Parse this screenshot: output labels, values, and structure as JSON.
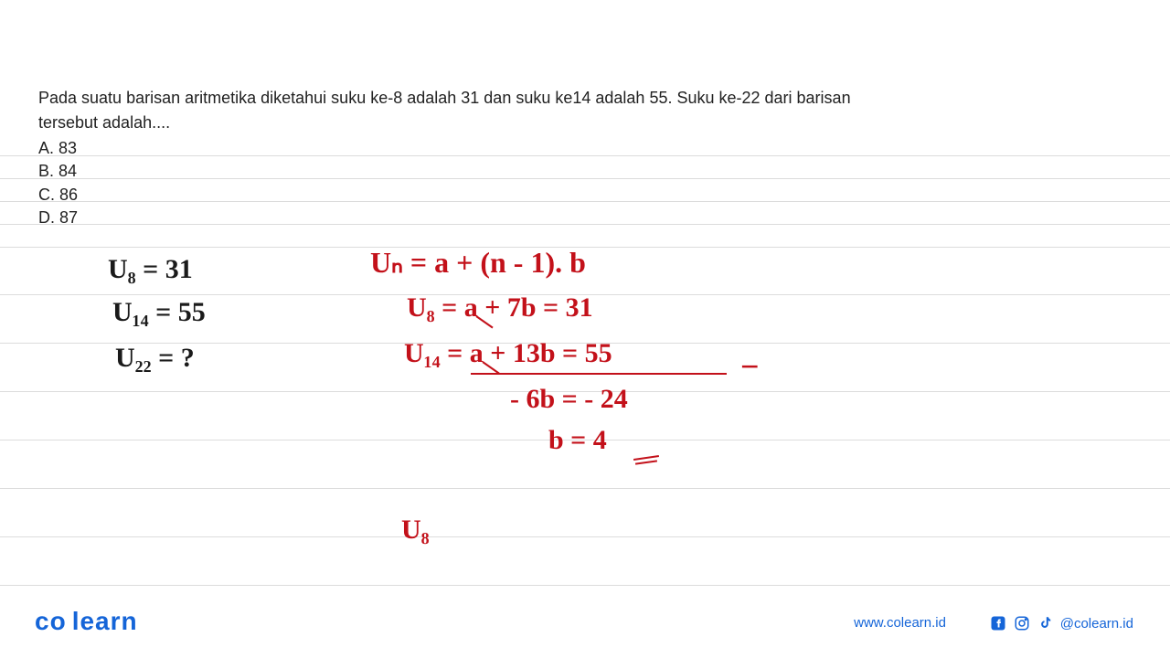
{
  "ruled_line_positions": [
    170,
    195,
    220,
    245,
    270,
    322,
    375,
    428,
    481,
    534,
    587,
    640
  ],
  "question": {
    "line1": "Pada suatu barisan aritmetika diketahui suku ke-8 adalah 31 dan suku ke14 adalah 55. Suku ke-22 dari barisan",
    "line2": "tersebut adalah....",
    "opt_a": "A. 83",
    "opt_b": "B. 84",
    "opt_c": "C. 86",
    "opt_d": "D. 87",
    "text_color": "#222222",
    "fontsize": 18
  },
  "hand_black": {
    "l1": "U₈  = 31",
    "l2": "U₁₄ =  55",
    "l3": "U₂₂ =  ?",
    "color": "#1a1a1a",
    "fontsize": 30
  },
  "hand_red": {
    "eq_un": "Uₙ = a + (n - 1). b",
    "eq_u8": "U₈  = a + 7b  = 31",
    "eq_u14": "U₁₄ = a + 13b  = 55",
    "minus": "−",
    "eq_6b": "- 6b  = - 24",
    "eq_b": "b  =  4",
    "eq_u8b": "U₈",
    "color": "#c3111a",
    "fontsize": 30
  },
  "footer": {
    "logo_text_1": "co",
    "logo_text_2": "learn",
    "url": "www.colearn.id",
    "handle": "@colearn.id",
    "brand_color": "#1565d8"
  }
}
